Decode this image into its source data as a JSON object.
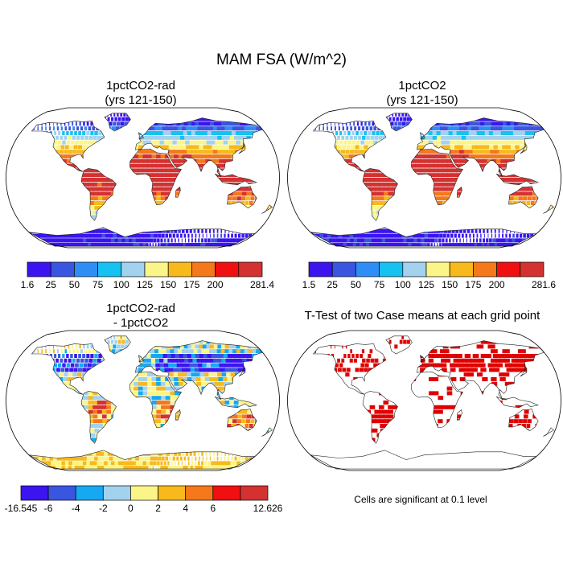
{
  "figure": {
    "title": "MAM FSA (W/m^2)"
  },
  "panels": {
    "top_left": {
      "title_line1": "1pctCO2-rad",
      "title_line2": "(yrs 121-150)"
    },
    "top_right": {
      "title_line1": "1pctCO2",
      "title_line2": "(yrs 121-150)"
    },
    "bottom_left": {
      "title_line1": "1pctCO2-rad",
      "title_line2": "- 1pctCO2"
    },
    "bottom_right": {
      "title": "T-Test of two Case means at each grid point",
      "note": "Cells are significant at 0.1 level"
    }
  },
  "colorbars": {
    "top_left": {
      "labels": [
        "1.6",
        "25",
        "50",
        "75",
        "100",
        "125",
        "150",
        "175",
        "200",
        "281.4"
      ],
      "colors": [
        "#3b14f0",
        "#3a55e0",
        "#2f8ef5",
        "#16c2f2",
        "#a2d2ee",
        "#fbf589",
        "#f7b91c",
        "#f5781b",
        "#f00f11",
        "#d43131"
      ]
    },
    "top_right": {
      "labels": [
        "1.5",
        "25",
        "50",
        "75",
        "100",
        "125",
        "150",
        "175",
        "200",
        "281.6"
      ],
      "colors": [
        "#3b14f0",
        "#3a55e0",
        "#2f8ef5",
        "#16c2f2",
        "#a2d2ee",
        "#fbf589",
        "#f7b91c",
        "#f5781b",
        "#f00f11",
        "#d43131"
      ]
    },
    "bottom_left": {
      "labels": [
        "-16.545",
        "-6",
        "-4",
        "-2",
        "0",
        "2",
        "4",
        "6",
        "12.626"
      ],
      "colors": [
        "#3b14f0",
        "#3a55e0",
        "#16a8f2",
        "#a2d2ee",
        "#fbf589",
        "#f7b91c",
        "#f5781b",
        "#f00f11",
        "#d43131"
      ]
    }
  },
  "chart_data": [
    {
      "type": "heatmap",
      "panel": "1pctCO2-rad (yrs 121-150)",
      "field": "MAM FSA",
      "units": "W/m^2",
      "range": [
        1.6,
        281.4
      ],
      "levels": [
        25,
        50,
        75,
        100,
        125,
        150,
        175,
        200
      ]
    },
    {
      "type": "heatmap",
      "panel": "1pctCO2 (yrs 121-150)",
      "field": "MAM FSA",
      "units": "W/m^2",
      "range": [
        1.5,
        281.6
      ],
      "levels": [
        25,
        50,
        75,
        100,
        125,
        150,
        175,
        200
      ]
    },
    {
      "type": "heatmap",
      "panel": "1pctCO2-rad - 1pctCO2",
      "field": "MAM FSA difference",
      "units": "W/m^2",
      "range": [
        -16.545,
        12.626
      ],
      "levels": [
        -6,
        -4,
        -2,
        0,
        2,
        4,
        6
      ]
    },
    {
      "type": "heatmap",
      "panel": "T-Test of two Case means at each grid point",
      "significance_level": 0.1,
      "significant_color": "#e00000"
    }
  ]
}
